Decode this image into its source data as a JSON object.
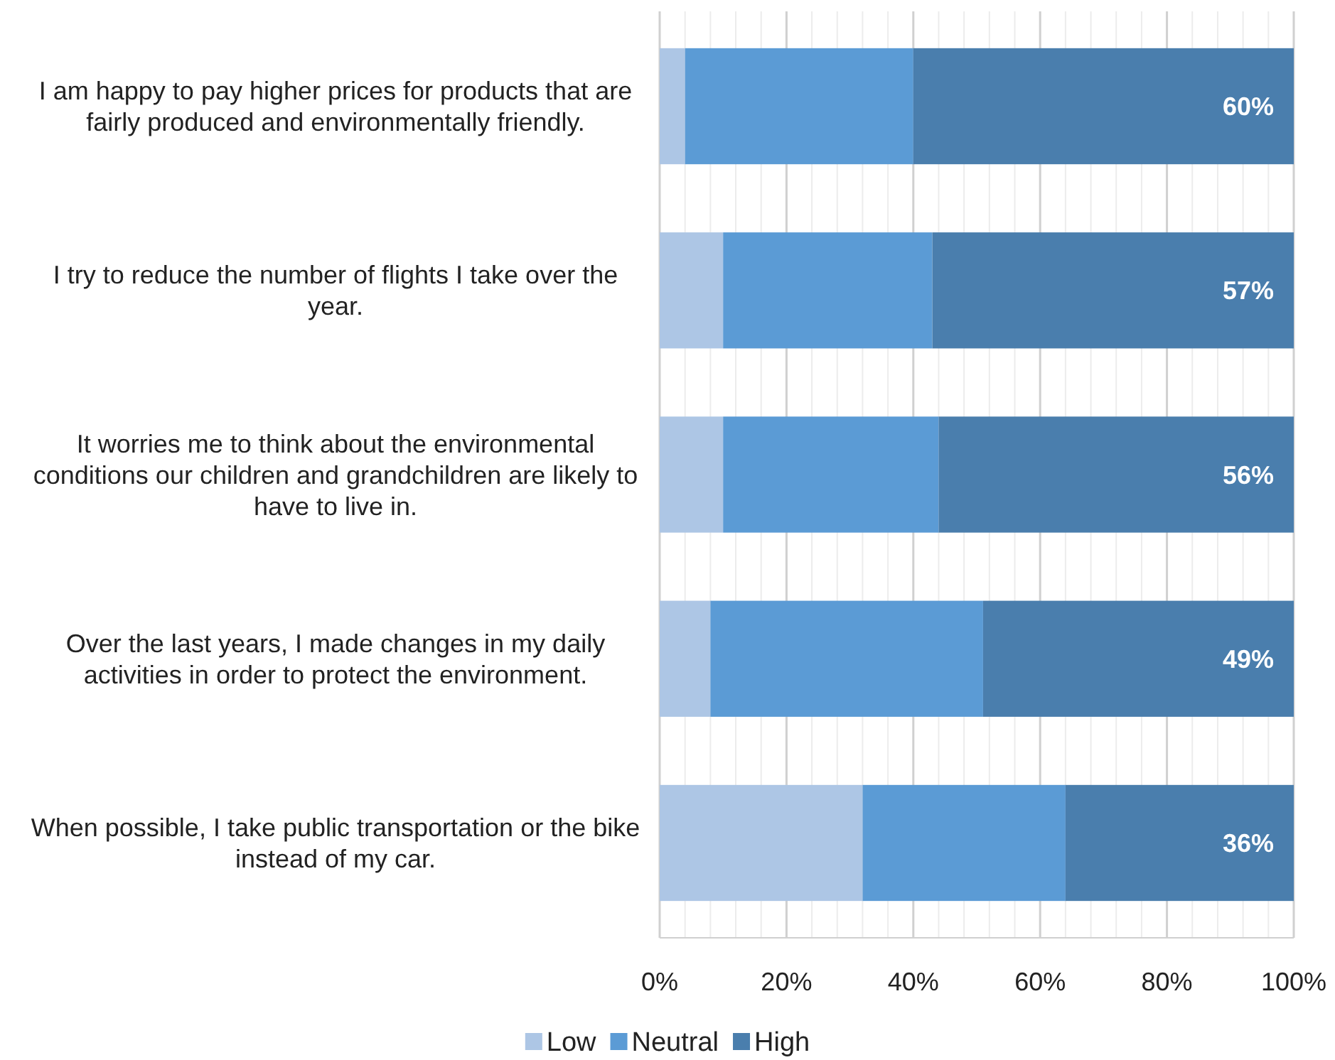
{
  "chart_data": {
    "type": "bar",
    "orientation": "horizontal",
    "stacked": true,
    "categories": [
      "I am happy to pay higher prices for products that are fairly produced and environmentally friendly.",
      "I try to reduce the number of flights I take over the year.",
      "It worries me to think about the environmental conditions our children and grandchildren are likely to have to live in.",
      "Over the last years, I made changes in my daily activities in order to protect the environment.",
      "When possible, I take public transportation or the bike instead of my car."
    ],
    "series": [
      {
        "name": "Low",
        "color": "#adc6e5",
        "values": [
          4,
          10,
          10,
          8,
          32
        ]
      },
      {
        "name": "Neutral",
        "color": "#5b9bd5",
        "values": [
          36,
          33,
          34,
          43,
          32
        ]
      },
      {
        "name": "High",
        "color": "#4a7ead",
        "values": [
          60,
          57,
          56,
          49,
          36
        ],
        "value_labels": [
          "60%",
          "57%",
          "56%",
          "49%",
          "36%"
        ]
      }
    ],
    "xlim": [
      0,
      100
    ],
    "xticks": [
      {
        "value": 0,
        "label": "0%"
      },
      {
        "value": 4,
        "label": null
      },
      {
        "value": 8,
        "label": null
      },
      {
        "value": 12,
        "label": null
      },
      {
        "value": 16,
        "label": null
      },
      {
        "value": 20,
        "label": "20%"
      },
      {
        "value": 24,
        "label": null
      },
      {
        "value": 28,
        "label": null
      },
      {
        "value": 32,
        "label": null
      },
      {
        "value": 36,
        "label": null
      },
      {
        "value": 40,
        "label": "40%"
      },
      {
        "value": 44,
        "label": null
      },
      {
        "value": 48,
        "label": null
      },
      {
        "value": 52,
        "label": null
      },
      {
        "value": 56,
        "label": null
      },
      {
        "value": 60,
        "label": "60%"
      },
      {
        "value": 64,
        "label": null
      },
      {
        "value": 68,
        "label": null
      },
      {
        "value": 72,
        "label": null
      },
      {
        "value": 76,
        "label": null
      },
      {
        "value": 80,
        "label": "80%"
      },
      {
        "value": 84,
        "label": null
      },
      {
        "value": 88,
        "label": null
      },
      {
        "value": 92,
        "label": null
      },
      {
        "value": 96,
        "label": null
      },
      {
        "value": 100,
        "label": "100%"
      }
    ],
    "grid": "x",
    "legend": "bottom"
  }
}
